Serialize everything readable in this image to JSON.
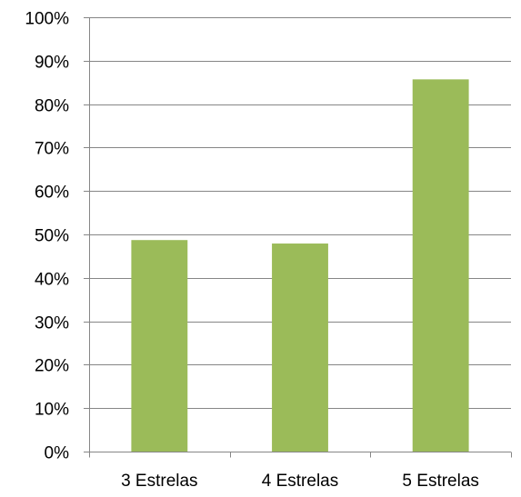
{
  "chart_data": {
    "type": "bar",
    "categories": [
      "3 Estrelas",
      "4 Estrelas",
      "5 Estrelas"
    ],
    "values": [
      48.7,
      47.9,
      85.7
    ],
    "ylim": [
      0,
      100
    ],
    "y_ticks": [
      {
        "value": 0,
        "label": "0%"
      },
      {
        "value": 10,
        "label": "10%"
      },
      {
        "value": 20,
        "label": "20%"
      },
      {
        "value": 30,
        "label": "30%"
      },
      {
        "value": 40,
        "label": "40%"
      },
      {
        "value": 50,
        "label": "50%"
      },
      {
        "value": 60,
        "label": "60%"
      },
      {
        "value": 70,
        "label": "70%"
      },
      {
        "value": 80,
        "label": "80%"
      },
      {
        "value": 90,
        "label": "90%"
      },
      {
        "value": 100,
        "label": "100%"
      }
    ],
    "grid": true,
    "legend": "none",
    "colors": {
      "bar": "#9bbb59",
      "grid": "#868686",
      "axis": "#868686"
    }
  }
}
